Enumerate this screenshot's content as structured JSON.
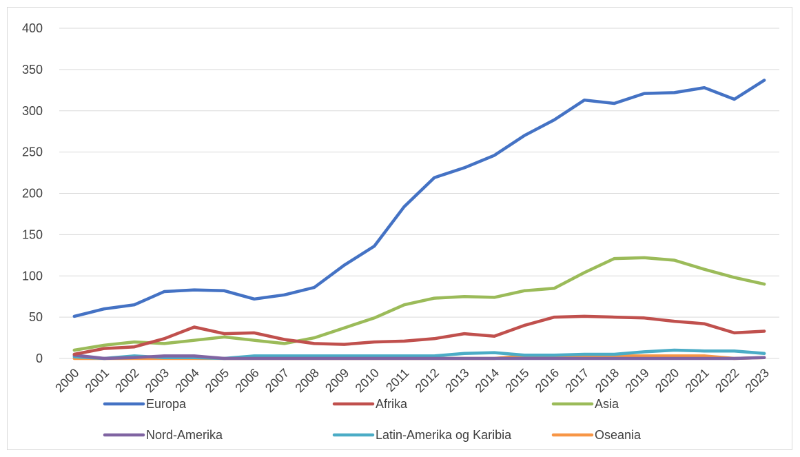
{
  "chart_data": {
    "type": "line",
    "title": "",
    "xlabel": "",
    "ylabel": "",
    "ylim": [
      0,
      400
    ],
    "yticks": [
      "0",
      "50",
      "100",
      "150",
      "200",
      "250",
      "300",
      "350",
      "400"
    ],
    "grid": true,
    "legend_position": "bottom",
    "categories": [
      "2000",
      "2001",
      "2002",
      "2003",
      "2004",
      "2005",
      "2006",
      "2007",
      "2008",
      "2009",
      "2010",
      "2011",
      "2012",
      "2013",
      "2014",
      "2015",
      "2016",
      "2017",
      "2018",
      "2019",
      "2020",
      "2021",
      "2022",
      "2023"
    ],
    "series": [
      {
        "name": "Europa",
        "color": "#4472c4",
        "values": [
          51,
          60,
          65,
          81,
          83,
          82,
          72,
          77,
          86,
          113,
          136,
          184,
          219,
          231,
          246,
          270,
          289,
          313,
          309,
          321,
          322,
          328,
          314,
          337
        ]
      },
      {
        "name": "Afrika",
        "color": "#c0504d",
        "values": [
          5,
          12,
          14,
          24,
          38,
          30,
          31,
          23,
          18,
          17,
          20,
          21,
          24,
          30,
          27,
          40,
          50,
          51,
          50,
          49,
          45,
          42,
          31,
          33
        ]
      },
      {
        "name": "Asia",
        "color": "#9bbb59",
        "values": [
          10,
          16,
          20,
          18,
          22,
          26,
          22,
          18,
          25,
          37,
          49,
          65,
          73,
          75,
          74,
          82,
          85,
          104,
          121,
          122,
          119,
          108,
          98,
          90
        ]
      },
      {
        "name": "Nord-Amerika",
        "color": "#8064a2",
        "values": [
          4,
          0,
          1,
          3,
          3,
          0,
          0,
          0,
          0,
          0,
          0,
          0,
          0,
          0,
          0,
          0,
          0,
          0,
          0,
          0,
          0,
          0,
          0,
          1
        ]
      },
      {
        "name": "Latin-Amerika og Karibia",
        "color": "#4bacc6",
        "values": [
          2,
          0,
          3,
          1,
          1,
          0,
          3,
          3,
          3,
          3,
          3,
          3,
          3,
          6,
          7,
          4,
          4,
          5,
          5,
          8,
          10,
          9,
          9,
          6
        ]
      },
      {
        "name": "Oseania",
        "color": "#f79646",
        "values": [
          0,
          0,
          0,
          0,
          0,
          0,
          0,
          0,
          0,
          0,
          0,
          0,
          0,
          0,
          0,
          3,
          3,
          3,
          3,
          3,
          3,
          3,
          0,
          1
        ]
      }
    ]
  }
}
